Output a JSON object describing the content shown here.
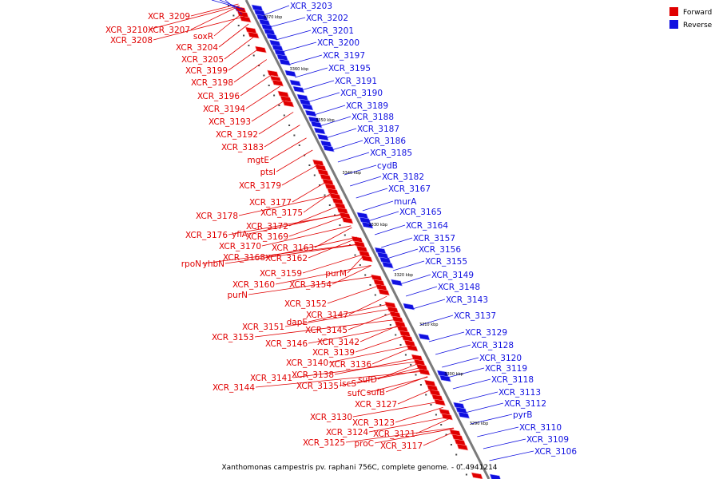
{
  "legend": {
    "forward_label": "Forward",
    "reverse_label": "Reverse",
    "forward_color": "#e00000",
    "reverse_color": "#1010e0"
  },
  "caption": "Xanthomonas campestris pv. raphani 756C, complete genome. - 0..4941214",
  "ticks": [
    "3370 kbp",
    "3360 kbp",
    "3350 kbp",
    "3340 kbp",
    "3330 kbp",
    "3320 kbp",
    "3310 kbp",
    "3300 kbp",
    "3290 kbp"
  ],
  "forward_genes": [
    "XCR_3209",
    "XCR_3210",
    "XCR_3207",
    "XCR_3208",
    "soxR",
    "XCR_3204",
    "XCR_3205",
    "XCR_3199",
    "XCR_3198",
    "XCR_3196",
    "XCR_3194",
    "XCR_3193",
    "XCR_3192",
    "XCR_3183",
    "mgtE",
    "ptsI",
    "XCR_3179",
    "XCR_3177",
    "XCR_3178",
    "XCR_3175",
    "XCR_3172",
    "XCR_3176",
    "yfiA",
    "XCR_3169",
    "XCR_3170",
    "XCR_3163",
    "XCR_3168",
    "XCR_3162",
    "rpoN",
    "yhbN",
    "XCR_3159",
    "purM",
    "XCR_3160",
    "XCR_3154",
    "purN",
    "XCR_3152",
    "XCR_3147",
    "dapE",
    "XCR_3151",
    "XCR_3145",
    "XCR_3153",
    "XCR_3142",
    "XCR_3146",
    "XCR_3139",
    "XCR_3140",
    "XCR_3136",
    "XCR_3138",
    "sufD",
    "XCR_3141",
    "iscS",
    "XCR_3144",
    "XCR_3135",
    "sufC",
    "sufB",
    "XCR_3127",
    "XCR_3130",
    "XCR_3123",
    "XCR_3124",
    "XCR_3121",
    "proC",
    "XCR_3125",
    "XCR_3117"
  ],
  "reverse_genes": [
    "XCR_3203",
    "XCR_3202",
    "XCR_3201",
    "XCR_3200",
    "XCR_3197",
    "XCR_3195",
    "XCR_3191",
    "XCR_3190",
    "XCR_3189",
    "XCR_3188",
    "XCR_3187",
    "XCR_3186",
    "XCR_3185",
    "cydB",
    "XCR_3182",
    "XCR_3167",
    "murA",
    "XCR_3165",
    "XCR_3164",
    "XCR_3157",
    "XCR_3156",
    "XCR_3155",
    "XCR_3149",
    "XCR_3148",
    "XCR_3143",
    "XCR_3137",
    "XCR_3129",
    "XCR_3128",
    "XCR_3120",
    "XCR_3119",
    "XCR_3118",
    "XCR_3113",
    "XCR_3112",
    "pyrB",
    "XCR_3110",
    "XCR_3109",
    "XCR_3106"
  ]
}
